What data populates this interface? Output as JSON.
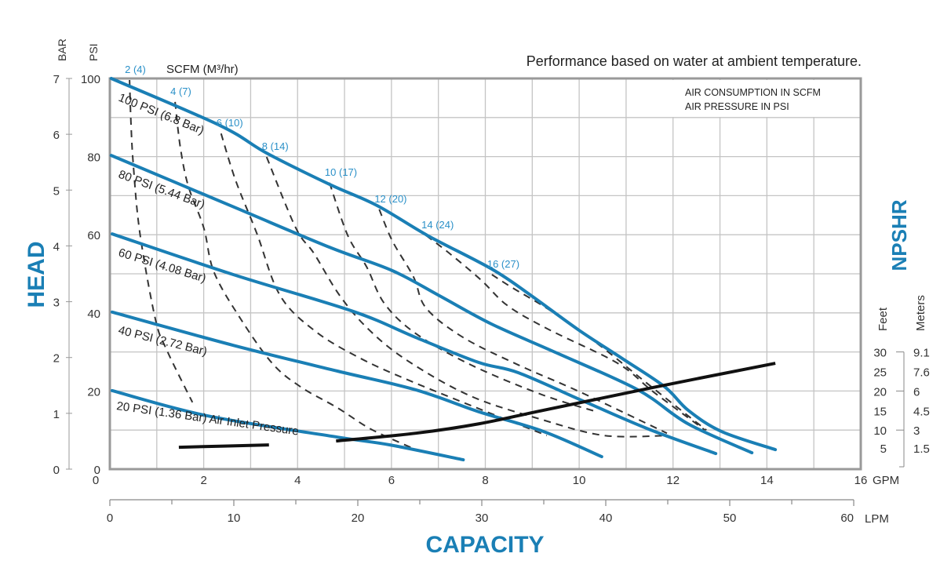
{
  "chart_data": {
    "type": "line",
    "title": "Performance based on water at ambient temperature.",
    "notes": [
      "AIR CONSUMPTION IN SCFM",
      "AIR PRESSURE IN PSI"
    ],
    "scfm_header": "SCFM (M³/hr)",
    "xlabel": "CAPACITY",
    "ylabel": "HEAD",
    "grid": true,
    "x_gpm": {
      "unit": "GPM",
      "range": [
        0,
        16
      ],
      "ticks": [
        0,
        2,
        4,
        6,
        8,
        10,
        12,
        14,
        16
      ]
    },
    "x_lpm": {
      "unit": "LPM",
      "range": [
        0,
        60
      ],
      "ticks": [
        0,
        10,
        20,
        30,
        40,
        50,
        60
      ]
    },
    "y_psi": {
      "unit": "PSI",
      "range": [
        0,
        100
      ],
      "ticks": [
        0,
        20,
        40,
        60,
        80,
        100
      ]
    },
    "y_bar": {
      "unit": "BAR",
      "range": [
        0,
        7
      ],
      "ticks": [
        0,
        1,
        2,
        3,
        4,
        5,
        6,
        7
      ]
    },
    "npshr_axis": {
      "label": "NPSHR",
      "feet_label": "Feet",
      "meters_label": "Meters",
      "feet": [
        30,
        25,
        20,
        15,
        10,
        5
      ],
      "meters": [
        "9.1",
        "7.6",
        "6",
        "4.5",
        "3",
        "1.5"
      ]
    },
    "pressure_series": [
      {
        "name": "100 PSI (6.8 Bar)",
        "points": [
          [
            0.03,
            100
          ],
          [
            2.34,
            88
          ],
          [
            3.34,
            80.9
          ],
          [
            4.68,
            72.9
          ],
          [
            5.69,
            67.5
          ],
          [
            6.77,
            59.8
          ],
          [
            8.14,
            51.2
          ],
          [
            8.98,
            44.4
          ],
          [
            9.98,
            35.7
          ],
          [
            10.92,
            28.3
          ],
          [
            11.82,
            21.1
          ],
          [
            12.32,
            15.1
          ],
          [
            13.04,
            9.6
          ],
          [
            14.18,
            5.0
          ]
        ]
      },
      {
        "name": "80 PSI (5.44 Bar)",
        "points": [
          [
            0.03,
            80.3
          ],
          [
            2.68,
            66.9
          ],
          [
            4.68,
            56.8
          ],
          [
            6.02,
            50.8
          ],
          [
            7.02,
            44.4
          ],
          [
            8.14,
            37.1
          ],
          [
            9.53,
            29.7
          ],
          [
            11.25,
            20.3
          ],
          [
            12.32,
            11.6
          ],
          [
            13.68,
            4.2
          ]
        ]
      },
      {
        "name": "60 PSI (4.08 Bar)",
        "points": [
          [
            0.05,
            60.2
          ],
          [
            2.63,
            49.8
          ],
          [
            5.18,
            40.4
          ],
          [
            6.52,
            33.7
          ],
          [
            7.86,
            27.3
          ],
          [
            8.7,
            24.7
          ],
          [
            10.15,
            17.1
          ],
          [
            11.49,
            10.2
          ],
          [
            12.91,
            4.0
          ]
        ]
      },
      {
        "name": "40 PSI (2.72 Bar)",
        "points": [
          [
            0.05,
            40.2
          ],
          [
            2.63,
            31.7
          ],
          [
            4.85,
            25.1
          ],
          [
            6.52,
            20.3
          ],
          [
            7.86,
            14.7
          ],
          [
            9.25,
            9.6
          ],
          [
            10.48,
            3.2
          ]
        ]
      },
      {
        "name": "20 PSI (1.36 Bar) Air Inlet Pressure",
        "points": [
          [
            0.05,
            20.1
          ],
          [
            2.06,
            13.7
          ],
          [
            4.85,
            8.2
          ],
          [
            5.97,
            6.2
          ],
          [
            7.53,
            2.4
          ]
        ]
      }
    ],
    "air_consumption_series": [
      {
        "name": "2 (4)",
        "points": [
          [
            0.42,
            99.6
          ],
          [
            0.45,
            88.6
          ],
          [
            0.5,
            77.9
          ],
          [
            0.64,
            60.4
          ],
          [
            0.97,
            38.4
          ],
          [
            1.22,
            30.3
          ],
          [
            1.76,
            17.1
          ]
        ]
      },
      {
        "name": "4 (7)",
        "points": [
          [
            1.39,
            94
          ],
          [
            1.5,
            82.5
          ],
          [
            1.67,
            72.5
          ],
          [
            2.0,
            61.8
          ],
          [
            2.22,
            50.4
          ],
          [
            2.79,
            38.4
          ],
          [
            3.46,
            27.1
          ],
          [
            4.06,
            21.1
          ],
          [
            4.85,
            15.7
          ],
          [
            5.57,
            10.2
          ],
          [
            6.52,
            5.0
          ]
        ]
      },
      {
        "name": "6 (10)",
        "points": [
          [
            2.37,
            85.9
          ],
          [
            2.68,
            73.9
          ],
          [
            3.13,
            60.4
          ],
          [
            3.63,
            44.4
          ],
          [
            4.4,
            35.1
          ],
          [
            5.35,
            28.3
          ],
          [
            6.3,
            23.1
          ],
          [
            7.69,
            16.3
          ],
          [
            9.31,
            8.6
          ]
        ]
      },
      {
        "name": "8 (14)",
        "points": [
          [
            3.34,
            79.9
          ],
          [
            3.96,
            61.8
          ],
          [
            4.35,
            55.2
          ],
          [
            4.9,
            44.4
          ],
          [
            5.52,
            35.7
          ],
          [
            6.35,
            27.7
          ],
          [
            7.69,
            18.7
          ],
          [
            9.2,
            12.7
          ],
          [
            10.54,
            8.6
          ],
          [
            11.87,
            8.6
          ]
        ]
      },
      {
        "name": "10 (17)",
        "points": [
          [
            4.68,
            73.3
          ],
          [
            5.07,
            59.8
          ],
          [
            5.47,
            51.8
          ],
          [
            5.85,
            42.4
          ],
          [
            6.52,
            34.7
          ],
          [
            7.69,
            26.7
          ],
          [
            9.2,
            19.1
          ],
          [
            10.37,
            14.7
          ]
        ]
      },
      {
        "name": "12 (20)",
        "points": [
          [
            5.74,
            66.5
          ],
          [
            6.02,
            58.4
          ],
          [
            6.47,
            49.2
          ],
          [
            6.74,
            41.2
          ],
          [
            7.53,
            33.7
          ],
          [
            8.7,
            26.7
          ],
          [
            10.03,
            19.7
          ],
          [
            11.87,
            9.2
          ]
        ]
      },
      {
        "name": "14 (24)",
        "points": [
          [
            6.74,
            59.8
          ],
          [
            7.24,
            55.2
          ],
          [
            7.91,
            48.4
          ],
          [
            8.48,
            41.8
          ],
          [
            9.36,
            35.7
          ],
          [
            10.82,
            27.1
          ],
          [
            11.59,
            19.7
          ],
          [
            12.68,
            10.0
          ]
        ]
      },
      {
        "name": "16 (27)",
        "points": [
          [
            8.14,
            49.8
          ],
          [
            8.58,
            46.4
          ],
          [
            9.36,
            40.8
          ],
          [
            10.37,
            32.3
          ],
          [
            11.37,
            22.7
          ],
          [
            12.21,
            14.7
          ],
          [
            12.71,
            10.0
          ]
        ]
      }
    ],
    "npshr_series": {
      "name": "NPSHR (Feet)",
      "segments": [
        [
          [
            1.47,
            5.6
          ],
          [
            3.39,
            6.2
          ]
        ],
        [
          [
            4.82,
            7.2
          ],
          [
            6.52,
            9.2
          ],
          [
            7.86,
            11.6
          ],
          [
            9.25,
            15.1
          ],
          [
            11.49,
            20.7
          ],
          [
            14.18,
            27.1
          ]
        ]
      ]
    },
    "colors": {
      "curve": "#1a7fb5",
      "label_blue": "#2a90c8",
      "dashed": "#333333",
      "npshr": "#111111",
      "grid": "#c4c4c4"
    }
  }
}
